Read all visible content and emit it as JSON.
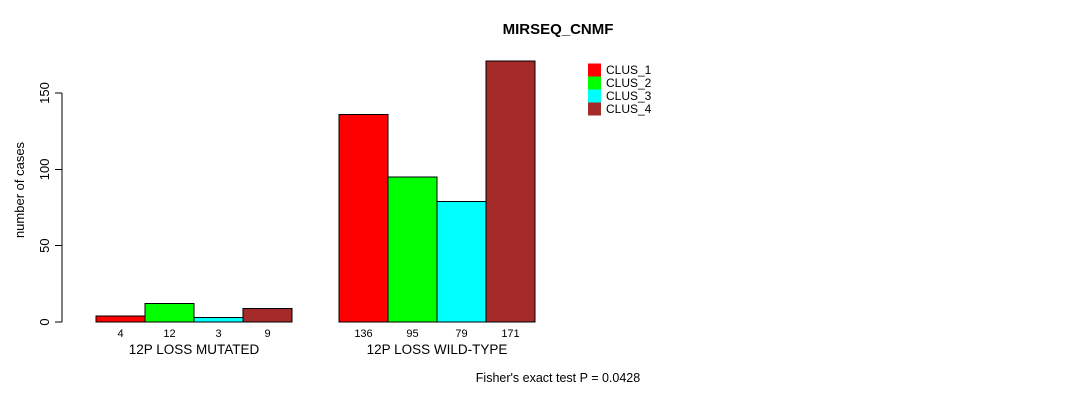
{
  "chart_data": {
    "type": "bar",
    "title": "MIRSEQ_CNMF",
    "ylabel": "number of cases",
    "xlabel": "",
    "categories": [
      "12P LOSS MUTATED",
      "12P LOSS WILD-TYPE"
    ],
    "series": [
      {
        "name": "CLUS_1",
        "color": "#FF0000",
        "values": [
          4,
          136
        ]
      },
      {
        "name": "CLUS_2",
        "color": "#00FF00",
        "values": [
          12,
          95
        ]
      },
      {
        "name": "CLUS_3",
        "color": "#00FFFF",
        "values": [
          3,
          79
        ]
      },
      {
        "name": "CLUS_4",
        "color": "#A52A2A",
        "values": [
          9,
          171
        ]
      }
    ],
    "yticks": [
      0,
      50,
      100,
      150
    ],
    "ylim": [
      0,
      175
    ],
    "bar_value_labels": true,
    "legend_position": "top-right",
    "grid": false,
    "annotation": "Fisher's exact test P = 0.0428",
    "colors": {
      "axis": "#000000",
      "text": "#000000",
      "background": "#FFFFFF"
    }
  }
}
